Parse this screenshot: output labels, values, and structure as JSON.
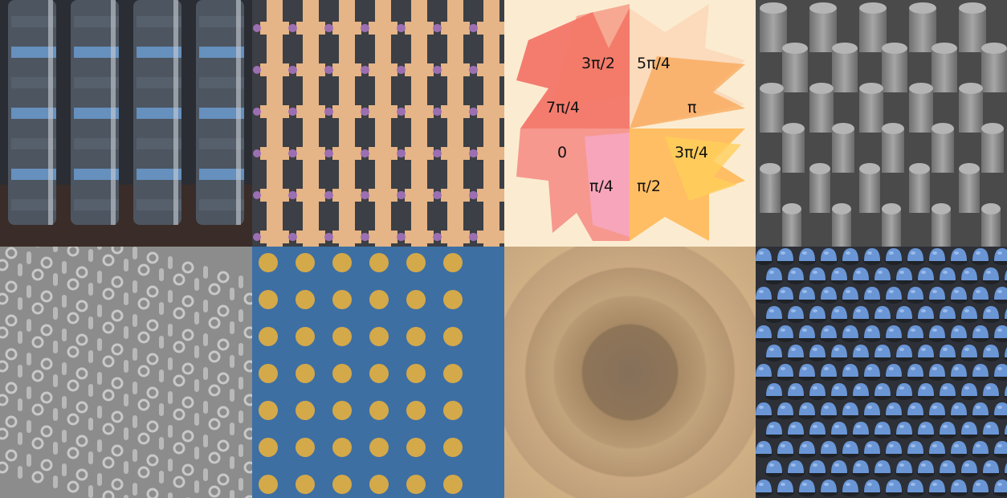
{
  "panels": [
    {
      "name": "stacked-fin-sem",
      "colors": {
        "bg": "#2a2d33",
        "fin": "#4d5560",
        "highlight": "#6fa4dc",
        "edge": "#c9ced6"
      }
    },
    {
      "name": "bowtie-lattice-sem",
      "colors": {
        "bg": "#3c3f45",
        "bar": "#e5b487",
        "gap": "#9b6fb2"
      }
    },
    {
      "name": "phase-segment-metasurface",
      "colors": {
        "bg": "#fbecd1",
        "red": "#f2685e",
        "pink": "#f7a9c6",
        "orange": "#f9a24f",
        "yellow": "#ffcf5a"
      },
      "phase_labels": [
        "3π/2",
        "5π/4",
        "7π/4",
        "π",
        "0",
        "3π/4",
        "π/4",
        "π/2"
      ]
    },
    {
      "name": "nanopillar-array-sem",
      "colors": {
        "bg": "#4a4a4a",
        "pillar": "#8a8a8a",
        "top": "#b4b4b4"
      }
    },
    {
      "name": "ring-resonator-array-sem",
      "colors": {
        "bg": "#8c8c8c",
        "ring": "#c8c8c8"
      }
    },
    {
      "name": "gold-disk-array",
      "colors": {
        "bg": "#3d6fa3",
        "disk": "#d4a94a"
      }
    },
    {
      "name": "concentric-ring-lens",
      "colors": {
        "outer": "#c9ac82",
        "mid": "#a88a66",
        "inner": "#8f7558"
      }
    },
    {
      "name": "blue-dome-array-sem",
      "colors": {
        "bg": "#2d3037",
        "dome": "#6a96d6"
      }
    }
  ]
}
